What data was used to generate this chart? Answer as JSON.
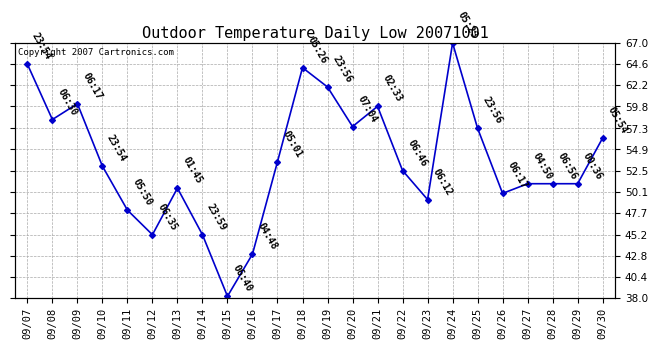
{
  "title": "Outdoor Temperature Daily Low 20071001",
  "copyright": "Copyright 2007 Cartronics.com",
  "dates": [
    "09/07",
    "09/08",
    "09/09",
    "09/10",
    "09/11",
    "09/12",
    "09/13",
    "09/14",
    "09/15",
    "09/16",
    "09/17",
    "09/18",
    "09/19",
    "09/20",
    "09/21",
    "09/22",
    "09/23",
    "09/24",
    "09/25",
    "09/26",
    "09/27",
    "09/28",
    "09/29",
    "09/30"
  ],
  "values": [
    64.6,
    58.3,
    60.1,
    53.0,
    48.0,
    45.2,
    50.5,
    45.2,
    38.2,
    43.0,
    53.5,
    64.2,
    62.0,
    57.5,
    59.8,
    52.5,
    49.2,
    67.0,
    57.3,
    49.9,
    51.0,
    51.0,
    51.0,
    56.2
  ],
  "labels": [
    "23:54",
    "06:30",
    "06:17",
    "23:54",
    "05:50",
    "06:35",
    "01:45",
    "23:59",
    "06:40",
    "04:48",
    "05:01",
    "05:26",
    "23:56",
    "07:04",
    "02:33",
    "06:46",
    "06:12",
    "05:23",
    "23:56",
    "06:17",
    "04:50",
    "06:56",
    "00:36",
    "05:54"
  ],
  "line_color": "#0000CC",
  "marker_color": "#0000CC",
  "bg_color": "#FFFFFF",
  "grid_color": "#AAAAAA",
  "text_color": "#000000",
  "ylim": [
    38.0,
    67.0
  ],
  "yticks": [
    38.0,
    40.4,
    42.8,
    45.2,
    47.7,
    50.1,
    52.5,
    54.9,
    57.3,
    59.8,
    62.2,
    64.6,
    67.0
  ],
  "title_fontsize": 11,
  "label_fontsize": 7,
  "tick_fontsize": 7.5,
  "copyright_fontsize": 6.5
}
